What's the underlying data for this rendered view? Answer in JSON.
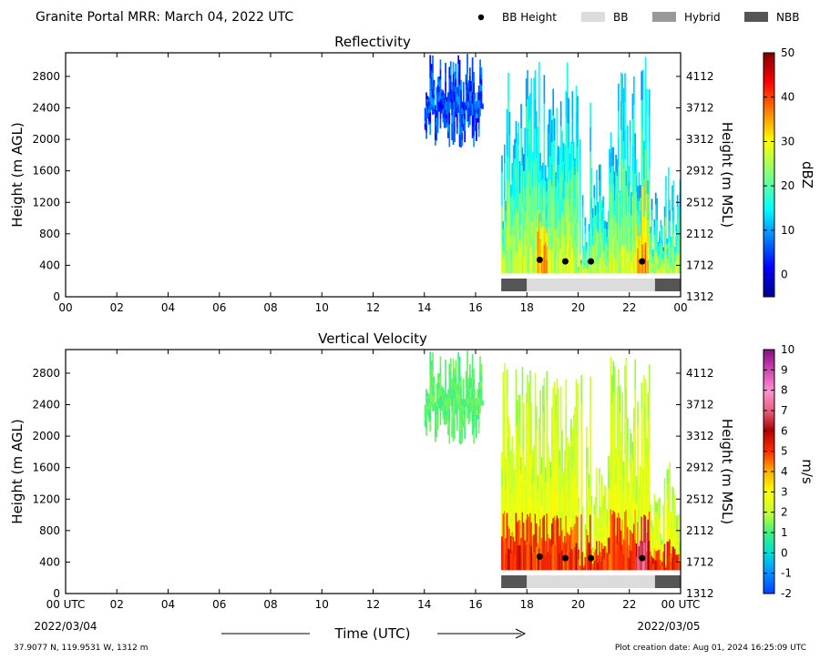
{
  "header": {
    "title": "Granite Portal MRR:  March 04, 2022 UTC",
    "legend": [
      {
        "label": "BB Height",
        "kind": "dot",
        "color": "#000000"
      },
      {
        "label": "BB",
        "kind": "swatch",
        "color": "#dcdcdc"
      },
      {
        "label": "Hybrid",
        "kind": "swatch",
        "color": "#999999"
      },
      {
        "label": "NBB",
        "kind": "swatch",
        "color": "#555555"
      }
    ]
  },
  "footer": {
    "location": "37.9077 N, 119.9531 W, 1312 m",
    "created": "Plot creation date: Aug 01, 2024 16:25:09 UTC",
    "xlabel": "Time (UTC)",
    "start_date": "2022/03/04",
    "end_date": "2022/03/05"
  },
  "chart_data": [
    {
      "type": "heatmap",
      "title": "Reflectivity",
      "xlabel": "",
      "ylabel": "Height (m AGL)",
      "ylabel_right": "Height (m MSL)",
      "colorbar_label": "dBZ",
      "xlim": [
        0,
        24
      ],
      "ylim": [
        0,
        3100
      ],
      "x_ticks": [
        "00",
        "02",
        "04",
        "06",
        "08",
        "10",
        "12",
        "14",
        "16",
        "18",
        "20",
        "22",
        "00"
      ],
      "y_ticks": [
        0,
        400,
        800,
        1200,
        1600,
        2000,
        2400,
        2800
      ],
      "y_ticks_right": [
        "1312",
        "1712",
        "2112",
        "2512",
        "2912",
        "3312",
        "3712",
        "4112"
      ],
      "colorbar": {
        "min": -5,
        "max": 50,
        "ticks": [
          "0",
          "10",
          "20",
          "30",
          "40",
          "50"
        ],
        "tick_values": [
          0,
          10,
          20,
          30,
          40,
          50
        ],
        "colormap": "jet"
      },
      "bb_height": {
        "times": [
          18.5,
          19.5,
          20.5,
          22.5
        ],
        "heights": [
          470,
          450,
          450,
          450
        ]
      },
      "bb_type": [
        {
          "type": "NBB",
          "start": 17.0,
          "end": 18.0
        },
        {
          "type": "BB",
          "start": 18.0,
          "end": 23.0
        },
        {
          "type": "NBB",
          "start": 23.0,
          "end": 24.0
        }
      ]
    },
    {
      "type": "heatmap",
      "title": "Vertical Velocity",
      "xlabel": "Time (UTC)",
      "ylabel": "Height (m AGL)",
      "ylabel_right": "Height (m MSL)",
      "colorbar_label": "m/s",
      "xlim": [
        0,
        24
      ],
      "ylim": [
        0,
        3100
      ],
      "x_ticks": [
        "00 UTC",
        "02",
        "04",
        "06",
        "08",
        "10",
        "12",
        "14",
        "16",
        "18",
        "20",
        "22",
        "00 UTC"
      ],
      "y_ticks": [
        0,
        400,
        800,
        1200,
        1600,
        2000,
        2400,
        2800
      ],
      "y_ticks_right": [
        "1312",
        "1712",
        "2112",
        "2512",
        "2912",
        "3312",
        "3712",
        "4112"
      ],
      "colorbar": {
        "min": -2,
        "max": 10,
        "ticks": [
          "-2",
          "-1",
          "0",
          "1",
          "2",
          "3",
          "4",
          "5",
          "6",
          "7",
          "8",
          "9",
          "10"
        ],
        "tick_values": [
          -2,
          -1,
          0,
          1,
          2,
          3,
          4,
          5,
          6,
          7,
          8,
          9,
          10
        ],
        "colormap": "velocity"
      },
      "bb_height": {
        "times": [
          18.5,
          19.5,
          20.5,
          22.5
        ],
        "heights": [
          470,
          450,
          450,
          450
        ]
      },
      "bb_type": [
        {
          "type": "NBB",
          "start": 17.0,
          "end": 18.0
        },
        {
          "type": "BB",
          "start": 18.0,
          "end": 23.0
        },
        {
          "type": "NBB",
          "start": 23.0,
          "end": 24.0
        }
      ]
    }
  ]
}
